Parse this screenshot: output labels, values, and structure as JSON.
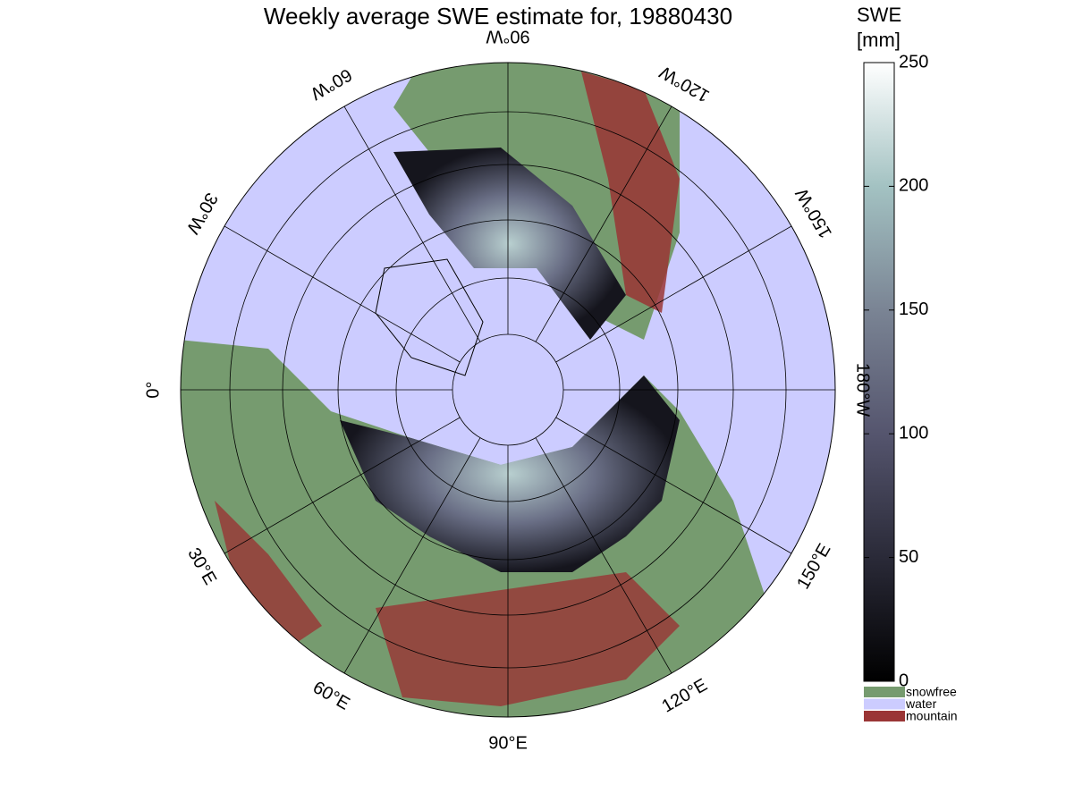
{
  "title": "Weekly average SWE estimate for, 19880430",
  "map": {
    "longitude_labels": [
      "0°",
      "30°E",
      "60°E",
      "90°E",
      "120°E",
      "150°E",
      "180°W",
      "150°W",
      "120°W",
      "90°W",
      "60°W",
      "30°W"
    ]
  },
  "colorbar": {
    "title": [
      "SWE",
      "[mm]"
    ],
    "ticks": [
      0,
      50,
      100,
      150,
      200,
      250
    ],
    "lim": [
      0,
      250
    ],
    "colors": [
      "#000000",
      "#2a2a38",
      "#55556e",
      "#7a8494",
      "#a3c2c2",
      "#ffffff"
    ]
  },
  "legend": [
    {
      "name": "snowfree",
      "color": "#769b6f"
    },
    {
      "name": "water",
      "color": "#ccccff"
    },
    {
      "name": "mountain",
      "color": "#9a3535"
    }
  ]
}
